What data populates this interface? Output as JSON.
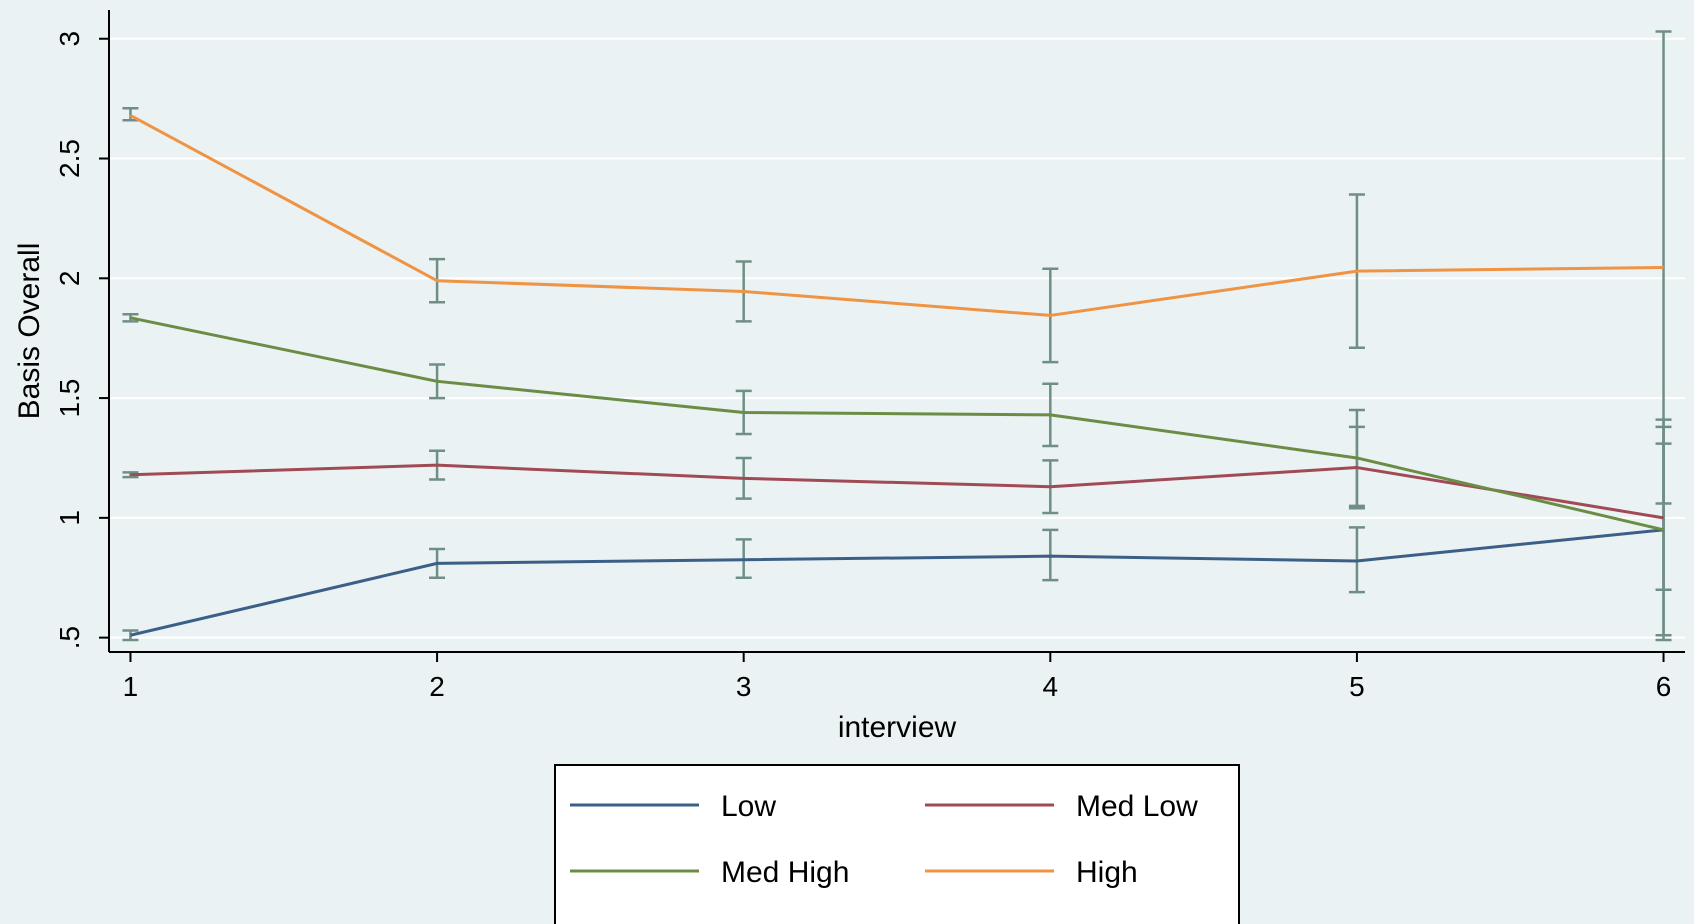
{
  "chart_data": {
    "type": "line",
    "xlabel": "interview",
    "ylabel": "Basis Overall",
    "x": [
      1,
      2,
      3,
      4,
      5,
      6
    ],
    "xlim": [
      0.93,
      6.07
    ],
    "ylim": [
      0.44,
      3.12
    ],
    "xticks": [
      1,
      2,
      3,
      4,
      5,
      6
    ],
    "xtick_labels": [
      "1",
      "2",
      "3",
      "4",
      "5",
      "6"
    ],
    "yticks": [
      0.5,
      1,
      1.5,
      2,
      2.5,
      3
    ],
    "ytick_labels": [
      ".5",
      "1",
      "1.5",
      "2",
      "2.5",
      "3"
    ],
    "grid": true,
    "legend_position": "bottom",
    "errorbar_color": "#6f8f86",
    "series": [
      {
        "name": "Low",
        "color": "#3b5f86",
        "values": [
          0.51,
          0.81,
          0.825,
          0.84,
          0.82,
          0.95
        ],
        "ci_low": [
          0.49,
          0.75,
          0.75,
          0.74,
          0.69,
          0.49
        ],
        "ci_high": [
          0.53,
          0.87,
          0.91,
          0.95,
          0.96,
          1.41
        ]
      },
      {
        "name": "Med Low",
        "color": "#a04a55",
        "values": [
          1.18,
          1.22,
          1.165,
          1.13,
          1.21,
          1.0
        ],
        "ci_low": [
          1.17,
          1.16,
          1.08,
          1.02,
          1.04,
          0.51
        ],
        "ci_high": [
          1.19,
          1.28,
          1.25,
          1.24,
          1.38,
          1.38
        ]
      },
      {
        "name": "Med High",
        "color": "#6b8c45",
        "values": [
          1.835,
          1.57,
          1.44,
          1.43,
          1.25,
          0.95
        ],
        "ci_low": [
          1.82,
          1.5,
          1.35,
          1.3,
          1.05,
          0.7
        ],
        "ci_high": [
          1.85,
          1.64,
          1.53,
          1.56,
          1.45,
          1.31
        ]
      },
      {
        "name": "High",
        "color": "#ef9444",
        "values": [
          2.68,
          1.99,
          1.945,
          1.845,
          2.03,
          2.045
        ],
        "ci_low": [
          2.66,
          1.9,
          1.82,
          1.65,
          1.71,
          1.06
        ],
        "ci_high": [
          2.71,
          2.08,
          2.07,
          2.04,
          2.35,
          3.03
        ]
      }
    ]
  }
}
